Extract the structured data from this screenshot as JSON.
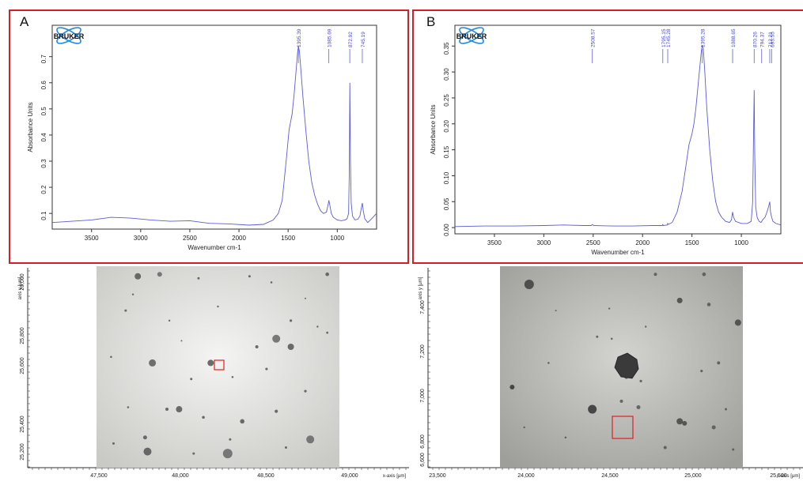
{
  "panel_a": {
    "letter": "A",
    "logo_text": "BRUKER",
    "spectrum": {
      "ylabel": "Absorbance Units",
      "xlabel": "Wavenumber cm-1",
      "y_ticks": [
        "0.1",
        "0.2",
        "0.3",
        "0.4",
        "0.5",
        "0.6",
        "0.7"
      ],
      "x_ticks": [
        "3500",
        "3000",
        "2500",
        "2000",
        "1500",
        "1000"
      ],
      "peak_labels": [
        "1395.39",
        "1085.69",
        "872.92",
        "745.19"
      ]
    },
    "micrograph": {
      "y_axis_label": "axis y [μm]",
      "x_axis_label": "x-axis [μm]",
      "y_ticks": [
        "26,000",
        "25,800",
        "25,600",
        "25,400",
        "25,200"
      ],
      "x_ticks": [
        "47,500",
        "48,000",
        "48,500",
        "49,000"
      ]
    }
  },
  "panel_b": {
    "letter": "B",
    "logo_text": "BRUKER",
    "spectrum": {
      "ylabel": "Absorbance Units",
      "xlabel": "Wavenumber cm-1",
      "y_ticks": [
        "0.00",
        "0.05",
        "0.10",
        "0.15",
        "0.20",
        "0.25",
        "0.30",
        "0.35"
      ],
      "x_ticks": [
        "3500",
        "3000",
        "2500",
        "2000",
        "1500",
        "1000"
      ],
      "peak_labels": [
        "2508.57",
        "1795.15",
        "1745.28",
        "1395.28",
        "1088.65",
        "870.26",
        "794.37",
        "712.21",
        "693.55"
      ]
    },
    "micrograph": {
      "y_axis_label": "axis y [μm]",
      "x_axis_label": "x-axis [μm]",
      "y_ticks": [
        "7,400",
        "7,200",
        "7,000",
        "6,800",
        "6,600"
      ],
      "x_ticks": [
        "23,500",
        "24,000",
        "24,500",
        "25,000",
        "25,500"
      ]
    }
  },
  "chart_data": [
    {
      "type": "line",
      "title": "",
      "xlabel": "Wavenumber cm-1",
      "ylabel": "Absorbance Units",
      "xlim": [
        3900,
        600
      ],
      "ylim": [
        0.04,
        0.82
      ],
      "peaks": [
        1395.39,
        1085.69,
        872.92,
        745.19
      ],
      "series": [
        {
          "x": [
            3900,
            3700,
            3500,
            3300,
            3100,
            2900,
            2700,
            2500,
            2300,
            2100,
            1900,
            1750,
            1650,
            1600,
            1560,
            1520,
            1490,
            1460,
            1440,
            1420,
            1405,
            1395,
            1385,
            1370,
            1350,
            1320,
            1290,
            1260,
            1230,
            1200,
            1170,
            1140,
            1110,
            1095,
            1085,
            1075,
            1060,
            1040,
            1000,
            960,
            920,
            900,
            885,
            878,
            872,
            866,
            858,
            845,
            820,
            790,
            770,
            755,
            745,
            735,
            720,
            690,
            650,
            600
          ],
          "y": [
            0.065,
            0.07,
            0.075,
            0.085,
            0.082,
            0.075,
            0.07,
            0.072,
            0.062,
            0.06,
            0.055,
            0.058,
            0.075,
            0.1,
            0.15,
            0.3,
            0.42,
            0.48,
            0.55,
            0.64,
            0.71,
            0.74,
            0.72,
            0.65,
            0.55,
            0.42,
            0.3,
            0.22,
            0.17,
            0.135,
            0.11,
            0.1,
            0.105,
            0.13,
            0.15,
            0.13,
            0.1,
            0.085,
            0.075,
            0.072,
            0.075,
            0.08,
            0.1,
            0.25,
            0.6,
            0.3,
            0.14,
            0.09,
            0.075,
            0.078,
            0.09,
            0.12,
            0.14,
            0.11,
            0.08,
            0.065,
            0.08,
            0.1
          ]
        }
      ]
    },
    {
      "type": "line",
      "title": "",
      "xlabel": "Wavenumber cm-1",
      "ylabel": "Absorbance Units",
      "xlim": [
        3900,
        600
      ],
      "ylim": [
        -0.012,
        0.39
      ],
      "peaks": [
        2508.57,
        1795.15,
        1745.28,
        1395.28,
        1088.65,
        870.26,
        794.37,
        712.21,
        693.55
      ],
      "series": [
        {
          "x": [
            3900,
            3600,
            3300,
            3000,
            2800,
            2600,
            2520,
            2508,
            2495,
            2300,
            2100,
            1900,
            1800,
            1795,
            1790,
            1750,
            1745,
            1740,
            1700,
            1650,
            1600,
            1560,
            1530,
            1500,
            1480,
            1460,
            1440,
            1420,
            1405,
            1395,
            1385,
            1370,
            1350,
            1320,
            1290,
            1260,
            1230,
            1200,
            1160,
            1120,
            1100,
            1089,
            1078,
            1060,
            1000,
            940,
            900,
            885,
            876,
            870,
            864,
            855,
            840,
            820,
            800,
            794,
            785,
            760,
            740,
            725,
            712,
            705,
            693,
            680,
            650,
            600
          ],
          "y": [
            0.002,
            0.003,
            0.003,
            0.004,
            0.005,
            0.004,
            0.004,
            0.006,
            0.004,
            0.003,
            0.003,
            0.004,
            0.004,
            0.006,
            0.004,
            0.005,
            0.008,
            0.006,
            0.01,
            0.03,
            0.07,
            0.12,
            0.16,
            0.18,
            0.2,
            0.23,
            0.27,
            0.31,
            0.34,
            0.352,
            0.345,
            0.3,
            0.23,
            0.15,
            0.09,
            0.05,
            0.03,
            0.02,
            0.012,
            0.01,
            0.015,
            0.03,
            0.02,
            0.012,
            0.008,
            0.008,
            0.012,
            0.05,
            0.18,
            0.265,
            0.14,
            0.04,
            0.02,
            0.012,
            0.01,
            0.012,
            0.015,
            0.02,
            0.03,
            0.04,
            0.05,
            0.03,
            0.02,
            0.012,
            0.008,
            0.005
          ]
        }
      ]
    }
  ]
}
